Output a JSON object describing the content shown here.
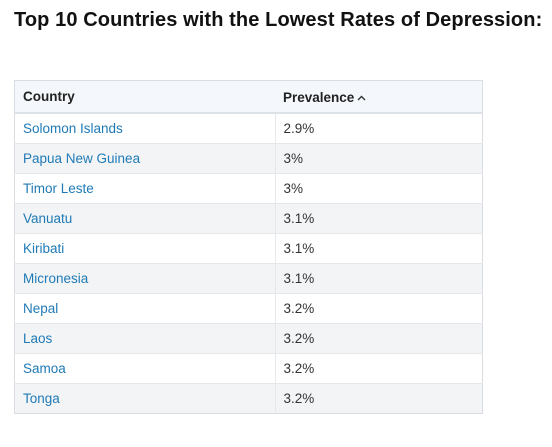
{
  "page": {
    "title": "Top 10 Countries with the Lowest Rates of Depression:"
  },
  "table": {
    "headers": {
      "country": "Country",
      "prevalence": "Prevalence"
    },
    "sort": {
      "column": "prevalence",
      "direction": "ascending",
      "icon": "chevron-up-icon"
    },
    "rows": [
      {
        "country": "Solomon Islands",
        "prevalence": "2.9%"
      },
      {
        "country": "Papua New Guinea",
        "prevalence": "3%"
      },
      {
        "country": "Timor Leste",
        "prevalence": "3%"
      },
      {
        "country": "Vanuatu",
        "prevalence": "3.1%"
      },
      {
        "country": "Kiribati",
        "prevalence": "3.1%"
      },
      {
        "country": "Micronesia",
        "prevalence": "3.1%"
      },
      {
        "country": "Nepal",
        "prevalence": "3.2%"
      },
      {
        "country": "Laos",
        "prevalence": "3.2%"
      },
      {
        "country": "Samoa",
        "prevalence": "3.2%"
      },
      {
        "country": "Tonga",
        "prevalence": "3.2%"
      }
    ]
  },
  "colors": {
    "link": "#1f7ab6",
    "header_background": "#f4f8fc",
    "stripe_background": "#f3f4f6",
    "border": "#d9dde2"
  }
}
